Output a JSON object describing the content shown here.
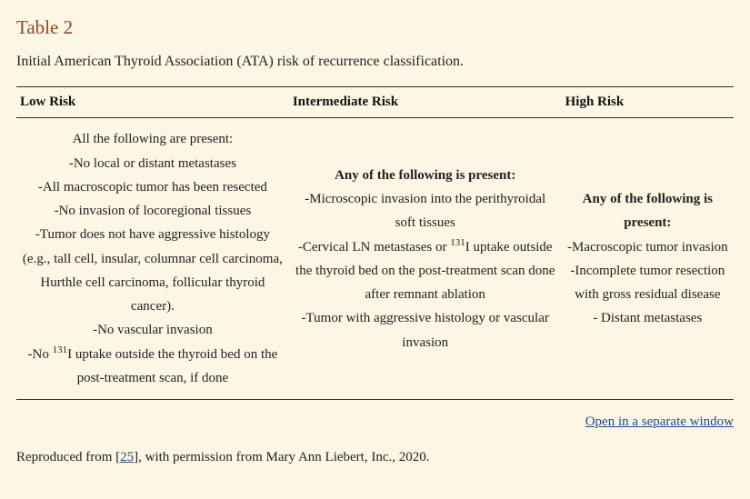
{
  "title": "Table 2",
  "caption": "Initial American Thyroid Association (ATA) risk of recurrence classification.",
  "columns": [
    "Low Risk",
    "Intermediate Risk",
    "High Risk"
  ],
  "cells": {
    "low": {
      "lead": "All the following are present:",
      "lead_bold": false,
      "items": [
        "-No local or distant metastases",
        "-All macroscopic tumor has been resected",
        "-No invasion of locoregional tissues",
        "-Tumor does not have aggressive histology (e.g., tall cell, insular, columnar cell carcinoma, Hurthle cell carcinoma, follicular thyroid cancer).",
        "-No vascular invasion",
        "-No {sup131}I uptake outside the thyroid bed on the post-treatment scan, if done"
      ]
    },
    "intermediate": {
      "lead": "Any of the following is present:",
      "lead_bold": true,
      "items": [
        "-Microscopic invasion into the perithyroidal soft tissues",
        "-Cervical LN metastases or {sup131}I uptake outside the thyroid bed on the post-treatment scan done after remnant ablation",
        "-Tumor with aggressive histology or vascular invasion"
      ]
    },
    "high": {
      "lead": "Any of the following is present:",
      "lead_bold": true,
      "items": [
        "-Macroscopic tumor invasion",
        "-Incomplete tumor resection with gross residual disease",
        "- Distant metastases"
      ]
    }
  },
  "open_link": "Open in a separate window",
  "footnote_pre": "Reproduced from [",
  "footnote_ref": "25",
  "footnote_post": "], with permission from Mary Ann Liebert, Inc., 2020.",
  "colors": {
    "background": "#fdf6e4",
    "title": "#8a4a2a",
    "text": "#222222",
    "border": "#333333",
    "link": "#1a4c8b"
  },
  "font": {
    "title_size_pt": 16,
    "body_size_pt": 12,
    "family": "Georgia / serif"
  },
  "layout": {
    "col_widths_pct": [
      38,
      38,
      24
    ],
    "line_height": 1.75
  },
  "type": "table"
}
